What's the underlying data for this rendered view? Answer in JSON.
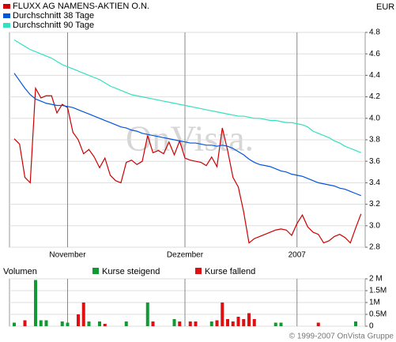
{
  "chart_data": [
    {
      "type": "line",
      "unit": "EUR",
      "watermark": "OnVista.",
      "categories": [
        null,
        null,
        null,
        null,
        null,
        null,
        null,
        null,
        null,
        null,
        "November",
        null,
        null,
        null,
        null,
        null,
        null,
        null,
        null,
        null,
        null,
        null,
        null,
        null,
        null,
        null,
        null,
        null,
        null,
        null,
        null,
        null,
        "Dezember",
        null,
        null,
        null,
        null,
        null,
        null,
        null,
        null,
        null,
        null,
        null,
        null,
        null,
        null,
        null,
        null,
        null,
        null,
        null,
        null,
        "2007",
        null,
        null,
        null,
        null,
        null,
        null,
        null,
        null,
        null,
        null,
        null,
        null
      ],
      "series": [
        {
          "name": "FLUXX AG NAMENS-AKTIEN O.N.",
          "color": "#cc0000",
          "values": [
            3.81,
            3.76,
            3.45,
            3.4,
            4.28,
            4.19,
            4.21,
            4.21,
            4.05,
            4.13,
            4.1,
            3.87,
            3.8,
            3.67,
            3.71,
            3.64,
            3.54,
            3.63,
            3.47,
            3.42,
            3.4,
            3.59,
            3.61,
            3.57,
            3.6,
            3.84,
            3.68,
            3.7,
            3.67,
            3.78,
            3.66,
            3.79,
            3.63,
            3.61,
            3.6,
            3.59,
            3.56,
            3.64,
            3.55,
            3.91,
            3.7,
            3.45,
            3.36,
            3.13,
            2.84,
            2.88,
            2.9,
            2.92,
            2.94,
            2.96,
            2.97,
            2.96,
            2.91,
            3.02,
            3.1,
            2.99,
            2.94,
            2.92,
            2.84,
            2.86,
            2.9,
            2.92,
            2.89,
            2.84,
            2.98,
            3.11
          ]
        },
        {
          "name": "Durchschnitt 38 Tage",
          "color": "#0055dd",
          "values": [
            4.42,
            4.35,
            4.28,
            4.22,
            4.18,
            4.16,
            4.14,
            4.13,
            4.12,
            4.12,
            4.11,
            4.1,
            4.08,
            4.06,
            4.04,
            4.02,
            4.0,
            3.98,
            3.96,
            3.94,
            3.92,
            3.91,
            3.89,
            3.88,
            3.86,
            3.85,
            3.84,
            3.83,
            3.82,
            3.81,
            3.8,
            3.79,
            3.78,
            3.77,
            3.77,
            3.76,
            3.75,
            3.75,
            3.74,
            3.75,
            3.74,
            3.72,
            3.69,
            3.66,
            3.62,
            3.59,
            3.57,
            3.56,
            3.55,
            3.53,
            3.51,
            3.5,
            3.48,
            3.47,
            3.46,
            3.44,
            3.42,
            3.4,
            3.39,
            3.38,
            3.37,
            3.35,
            3.34,
            3.32,
            3.3,
            3.28
          ]
        },
        {
          "name": "Durchschnitt 90 Tage",
          "color": "#33e0c0",
          "values": [
            4.73,
            4.7,
            4.67,
            4.64,
            4.62,
            4.6,
            4.58,
            4.56,
            4.53,
            4.5,
            4.48,
            4.46,
            4.44,
            4.42,
            4.4,
            4.38,
            4.36,
            4.33,
            4.3,
            4.28,
            4.26,
            4.24,
            4.22,
            4.21,
            4.2,
            4.19,
            4.18,
            4.17,
            4.16,
            4.15,
            4.14,
            4.13,
            4.12,
            4.11,
            4.1,
            4.09,
            4.08,
            4.07,
            4.06,
            4.05,
            4.04,
            4.03,
            4.02,
            4.02,
            4.01,
            4.0,
            4.0,
            3.99,
            3.98,
            3.98,
            3.97,
            3.96,
            3.96,
            3.95,
            3.94,
            3.92,
            3.88,
            3.86,
            3.84,
            3.82,
            3.79,
            3.77,
            3.74,
            3.72,
            3.7,
            3.68
          ]
        }
      ],
      "ylim": [
        2.8,
        4.8
      ],
      "yticks": [
        2.8,
        {
          "value": 3,
          "label": "3.0"
        },
        3.2,
        3.4,
        3.6,
        3.8,
        {
          "value": 4,
          "label": "4.0"
        },
        4.2,
        4.4,
        4.6,
        4.8
      ],
      "grid": true
    },
    {
      "type": "bar",
      "title": "Volumen",
      "series": [
        {
          "name": "Kurse steigend",
          "color": "#119933",
          "values": [
            0.15,
            null,
            null,
            null,
            1.95,
            0.25,
            0.25,
            null,
            null,
            0.2,
            0.15,
            null,
            null,
            null,
            0.2,
            null,
            0.2,
            null,
            null,
            null,
            null,
            0.2,
            null,
            null,
            null,
            1.0,
            null,
            null,
            null,
            null,
            0.3,
            null,
            null,
            null,
            null,
            null,
            null,
            0.2,
            null,
            null,
            null,
            null,
            null,
            null,
            null,
            null,
            null,
            null,
            null,
            0.15,
            0.15,
            null,
            null,
            null,
            null,
            null,
            null,
            null,
            null,
            null,
            null,
            null,
            null,
            null,
            0.2,
            null
          ]
        },
        {
          "name": "Kurse fallend",
          "color": "#dd1111",
          "values": [
            null,
            null,
            0.25,
            null,
            null,
            null,
            null,
            null,
            null,
            null,
            null,
            null,
            0.5,
            1.0,
            null,
            null,
            null,
            0.1,
            null,
            null,
            null,
            null,
            null,
            null,
            null,
            null,
            0.2,
            null,
            null,
            null,
            null,
            0.2,
            null,
            0.2,
            0.2,
            null,
            null,
            null,
            0.25,
            1.0,
            0.3,
            0.2,
            0.4,
            0.3,
            0.55,
            0.3,
            null,
            null,
            null,
            null,
            null,
            null,
            null,
            null,
            null,
            null,
            null,
            0.15,
            null,
            null,
            null,
            null,
            null,
            null,
            null,
            null
          ]
        }
      ],
      "ylim": [
        0,
        2
      ],
      "yticks": [
        0,
        {
          "value": 0.5,
          "label": "0.5M"
        },
        {
          "value": 1,
          "label": "1M"
        },
        {
          "value": 1.5,
          "label": "1.5M"
        },
        {
          "value": 2,
          "label": "2 M"
        }
      ],
      "grid": true
    }
  ],
  "copyright": "© 1999-2007 OnVista Gruppe"
}
